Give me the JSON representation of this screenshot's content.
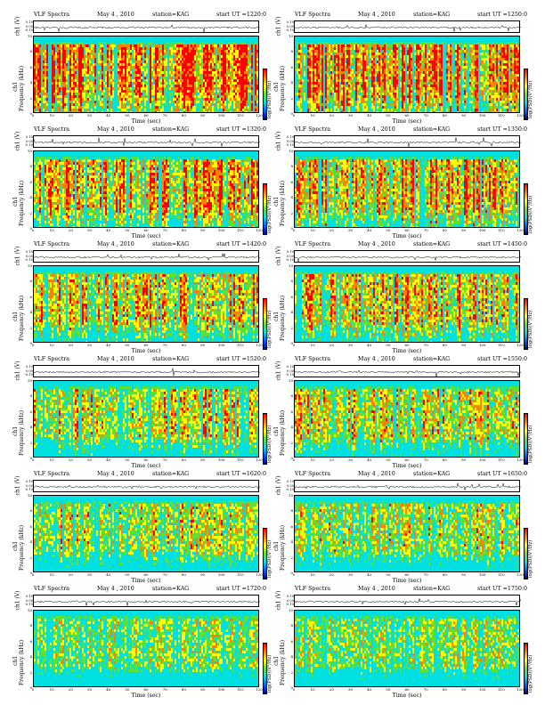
{
  "header": {
    "title_left": "VLF Spectra",
    "date": "May 4 , 2010",
    "station": "station=KAG",
    "ut_prefix": "start  UT  ="
  },
  "axes": {
    "wave_ylabel": "ch1 (V)",
    "wave_ticks": [
      "0.10",
      "0.00",
      "-0.10"
    ],
    "spec_ylabel_top": "ch1",
    "spec_ylabel": "Frequency (kHz)",
    "freq_ticks": [
      "0",
      "2",
      "4",
      "6",
      "8",
      "10"
    ],
    "time_ticks": [
      "0",
      "10",
      "20",
      "30",
      "40",
      "50",
      "60",
      "70",
      "80",
      "90",
      "100",
      "110",
      "120"
    ],
    "xlabel": "Time (sec)",
    "colorbar_label": "log(PSD)(V²/Hz)"
  },
  "chart_data": [
    {
      "type": "heatmap",
      "title": "VLF Spectra",
      "date": "May 4 , 2010",
      "station": "station=KAG",
      "start_ut": "1220:0",
      "xlabel": "Time (sec)",
      "ylabel": "Frequency (kHz)",
      "xlim": [
        0,
        120
      ],
      "ylim": [
        0,
        10
      ]
    },
    {
      "type": "heatmap",
      "title": "VLF Spectra",
      "date": "May 4 , 2010",
      "station": "station=KAG",
      "start_ut": "1250:0",
      "xlabel": "Time (sec)",
      "ylabel": "Frequency (kHz)",
      "xlim": [
        0,
        120
      ],
      "ylim": [
        0,
        10
      ]
    },
    {
      "type": "heatmap",
      "title": "VLF Spectra",
      "date": "May 4 , 2010",
      "station": "station=KAG",
      "start_ut": "1320:0",
      "xlabel": "Time (sec)",
      "ylabel": "Frequency (kHz)",
      "xlim": [
        0,
        120
      ],
      "ylim": [
        0,
        10
      ]
    },
    {
      "type": "heatmap",
      "title": "VLF Spectra",
      "date": "May 4 , 2010",
      "station": "station=KAG",
      "start_ut": "1350:0",
      "xlabel": "Time (sec)",
      "ylabel": "Frequency (kHz)",
      "xlim": [
        0,
        120
      ],
      "ylim": [
        0,
        10
      ]
    },
    {
      "type": "heatmap",
      "title": "VLF Spectra",
      "date": "May 4 , 2010",
      "station": "station=KAG",
      "start_ut": "1420:0",
      "xlabel": "Time (sec)",
      "ylabel": "Frequency (kHz)",
      "xlim": [
        0,
        120
      ],
      "ylim": [
        0,
        10
      ]
    },
    {
      "type": "heatmap",
      "title": "VLF Spectra",
      "date": "May 4 , 2010",
      "station": "station=KAG",
      "start_ut": "1450:0",
      "xlabel": "Time (sec)",
      "ylabel": "Frequency (kHz)",
      "xlim": [
        0,
        120
      ],
      "ylim": [
        0,
        10
      ]
    },
    {
      "type": "heatmap",
      "title": "VLF Spectra",
      "date": "May 4 , 2010",
      "station": "station=KAG",
      "start_ut": "1520:0",
      "xlabel": "Time (sec)",
      "ylabel": "Frequency (kHz)",
      "xlim": [
        0,
        120
      ],
      "ylim": [
        0,
        10
      ]
    },
    {
      "type": "heatmap",
      "title": "VLF Spectra",
      "date": "May 4 , 2010",
      "station": "station=KAG",
      "start_ut": "1550:0",
      "xlabel": "Time (sec)",
      "ylabel": "Frequency (kHz)",
      "xlim": [
        0,
        120
      ],
      "ylim": [
        0,
        10
      ]
    },
    {
      "type": "heatmap",
      "title": "VLF Spectra",
      "date": "May 4 , 2010",
      "station": "station=KAG",
      "start_ut": "1620:0",
      "xlabel": "Time (sec)",
      "ylabel": "Frequency (kHz)",
      "xlim": [
        0,
        120
      ],
      "ylim": [
        0,
        10
      ]
    },
    {
      "type": "heatmap",
      "title": "VLF Spectra",
      "date": "May 4 , 2010",
      "station": "station=KAG",
      "start_ut": "1650:0",
      "xlabel": "Time (sec)",
      "ylabel": "Frequency (kHz)",
      "xlim": [
        0,
        120
      ],
      "ylim": [
        0,
        10
      ]
    },
    {
      "type": "heatmap",
      "title": "VLF Spectra",
      "date": "May 4 , 2010",
      "station": "station=KAG",
      "start_ut": "1720:0",
      "xlabel": "Time (sec)",
      "ylabel": "Frequency (kHz)",
      "xlim": [
        0,
        120
      ],
      "ylim": [
        0,
        10
      ]
    },
    {
      "type": "heatmap",
      "title": "VLF Spectra",
      "date": "May 4 , 2010",
      "station": "station=KAG",
      "start_ut": "1750:0",
      "xlabel": "Time (sec)",
      "ylabel": "Frequency (kHz)",
      "xlim": [
        0,
        120
      ],
      "ylim": [
        0,
        10
      ]
    }
  ],
  "palette": [
    "#ff0000",
    "#ff8000",
    "#ffff00",
    "#60e030",
    "#00e0e0",
    "#0060ff",
    "#000090"
  ]
}
